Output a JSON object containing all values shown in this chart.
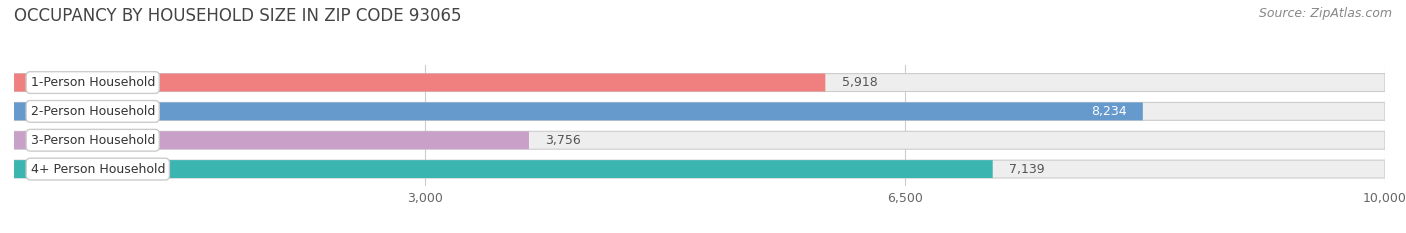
{
  "title": "OCCUPANCY BY HOUSEHOLD SIZE IN ZIP CODE 93065",
  "source": "Source: ZipAtlas.com",
  "categories": [
    "1-Person Household",
    "2-Person Household",
    "3-Person Household",
    "4+ Person Household"
  ],
  "values": [
    5918,
    8234,
    3756,
    7139
  ],
  "bar_colors": [
    "#f08080",
    "#6699cc",
    "#c9a0c8",
    "#3ab5b0"
  ],
  "value_text_colors": [
    "#555555",
    "#ffffff",
    "#555555",
    "#555555"
  ],
  "xlim": [
    0,
    10000
  ],
  "xticks": [
    3000,
    6500,
    10000
  ],
  "background_color": "#ffffff",
  "bar_bg_color": "#eeeeee",
  "bar_bg_border": "#cccccc",
  "title_fontsize": 12,
  "label_fontsize": 9,
  "value_fontsize": 9,
  "source_fontsize": 9,
  "figsize": [
    14.06,
    2.33
  ],
  "dpi": 100
}
